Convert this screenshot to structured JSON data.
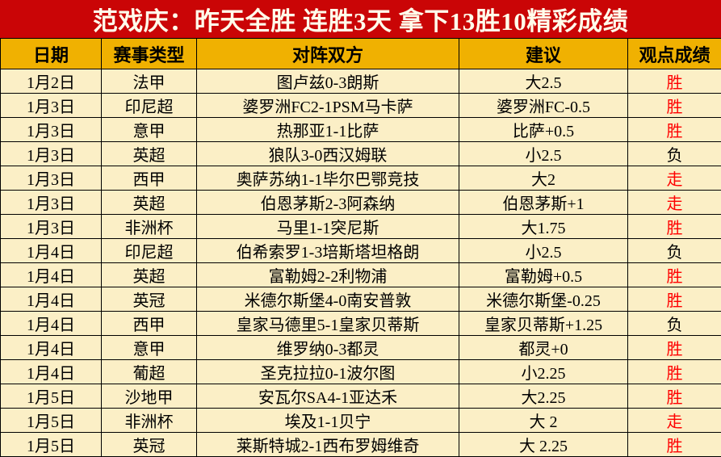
{
  "banner": {
    "title": "范戏庆：昨天全胜  连胜3天  拿下13胜10精彩成绩",
    "bg_color": "#CA0506",
    "text_color": "#FFFDEB"
  },
  "table": {
    "columns": [
      "日期",
      "赛事类型",
      "对阵双方",
      "建议",
      "观点成绩"
    ],
    "header_bg": "#F0B101",
    "row_bg": "#FBEFC6",
    "result_win_color": "#FF0000",
    "result_lose_color": "#000000",
    "rows": [
      {
        "date": "1月2日",
        "league": "法甲",
        "match": "图卢兹0-3朗斯",
        "advice": "大2.5",
        "result": "胜",
        "result_color": "#FF0000"
      },
      {
        "date": "1月3日",
        "league": "印尼超",
        "match": "婆罗洲FC2-1PSM马卡萨",
        "advice": "婆罗洲FC-0.5",
        "result": "胜",
        "result_color": "#FF0000"
      },
      {
        "date": "1月3日",
        "league": "意甲",
        "match": "热那亚1-1比萨",
        "advice": "比萨+0.5",
        "result": "胜",
        "result_color": "#FF0000"
      },
      {
        "date": "1月3日",
        "league": "英超",
        "match": "狼队3-0西汉姆联",
        "advice": "小2.5",
        "result": "负",
        "result_color": "#000000"
      },
      {
        "date": "1月3日",
        "league": "西甲",
        "match": "奥萨苏纳1-1毕尔巴鄂竞技",
        "advice": "大2",
        "result": "走",
        "result_color": "#FF0000"
      },
      {
        "date": "1月3日",
        "league": "英超",
        "match": "伯恩茅斯2-3阿森纳",
        "advice": "伯恩茅斯+1",
        "result": "走",
        "result_color": "#FF0000"
      },
      {
        "date": "1月3日",
        "league": "非洲杯",
        "match": "马里1-1突尼斯",
        "advice": "大1.75",
        "result": "胜",
        "result_color": "#FF0000"
      },
      {
        "date": "1月4日",
        "league": "印尼超",
        "match": "伯希索罗1-3培斯塔坦格朗",
        "advice": "小2.5",
        "result": "负",
        "result_color": "#000000"
      },
      {
        "date": "1月4日",
        "league": "英超",
        "match": "富勒姆2-2利物浦",
        "advice": "富勒姆+0.5",
        "result": "胜",
        "result_color": "#FF0000"
      },
      {
        "date": "1月4日",
        "league": "英冠",
        "match": "米德尔斯堡4-0南安普敦",
        "advice": "米德尔斯堡-0.25",
        "result": "胜",
        "result_color": "#FF0000"
      },
      {
        "date": "1月4日",
        "league": "西甲",
        "match": "皇家马德里5-1皇家贝蒂斯",
        "advice": "皇家贝蒂斯+1.25",
        "result": "负",
        "result_color": "#000000"
      },
      {
        "date": "1月4日",
        "league": "意甲",
        "match": "维罗纳0-3都灵",
        "advice": "都灵+0",
        "result": "胜",
        "result_color": "#FF0000"
      },
      {
        "date": "1月4日",
        "league": "葡超",
        "match": "圣克拉拉0-1波尔图",
        "advice": "小2.25",
        "result": "胜",
        "result_color": "#FF0000"
      },
      {
        "date": "1月5日",
        "league": "沙地甲",
        "match": "安瓦尔SA4-1亚达禾",
        "advice": "大2.25",
        "result": "胜",
        "result_color": "#FF0000"
      },
      {
        "date": "1月5日",
        "league": "非洲杯",
        "match": "埃及1-1贝宁",
        "advice": "大 2",
        "result": "走",
        "result_color": "#FF0000"
      },
      {
        "date": "1月5日",
        "league": "英冠",
        "match": "莱斯特城2-1西布罗姆维奇",
        "advice": "大 2.25",
        "result": "胜",
        "result_color": "#FF0000"
      }
    ]
  }
}
